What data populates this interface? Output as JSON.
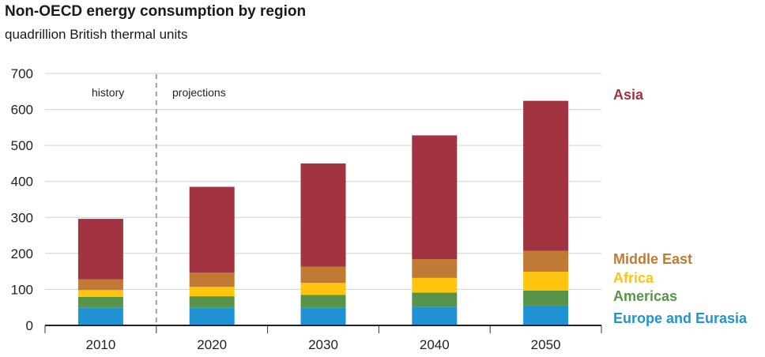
{
  "title": "Non-OECD energy consumption by region",
  "subtitle": "quadrillion British thermal units",
  "chart_data": {
    "type": "bar",
    "stacked": true,
    "title": "Non-OECD energy consumption by region",
    "ylabel": "quadrillion British thermal units",
    "xlabel": "",
    "ylim": [
      0,
      700
    ],
    "yticks": [
      "0",
      "100",
      "200",
      "300",
      "400",
      "500",
      "600",
      "700"
    ],
    "categories": [
      "2010",
      "2020",
      "2030",
      "2040",
      "2050"
    ],
    "annotations": {
      "history": "history",
      "projections": "projections"
    },
    "series": [
      {
        "name": "Europe and Eurasia",
        "color": "#1f93d4",
        "values": [
          50,
          50,
          50,
          52,
          55
        ]
      },
      {
        "name": "Americas",
        "color": "#57944a",
        "values": [
          29,
          31,
          35,
          39,
          42
        ]
      },
      {
        "name": "Africa",
        "color": "#fec40e",
        "values": [
          19,
          26,
          33,
          41,
          52
        ]
      },
      {
        "name": "Middle East",
        "color": "#c07a35",
        "values": [
          30,
          40,
          45,
          52,
          58
        ]
      },
      {
        "name": "Asia",
        "color": "#a23341",
        "values": [
          168,
          238,
          287,
          344,
          417
        ]
      }
    ],
    "legend_order": [
      "Asia",
      "Middle East",
      "Africa",
      "Americas",
      "Europe and Eurasia"
    ]
  }
}
